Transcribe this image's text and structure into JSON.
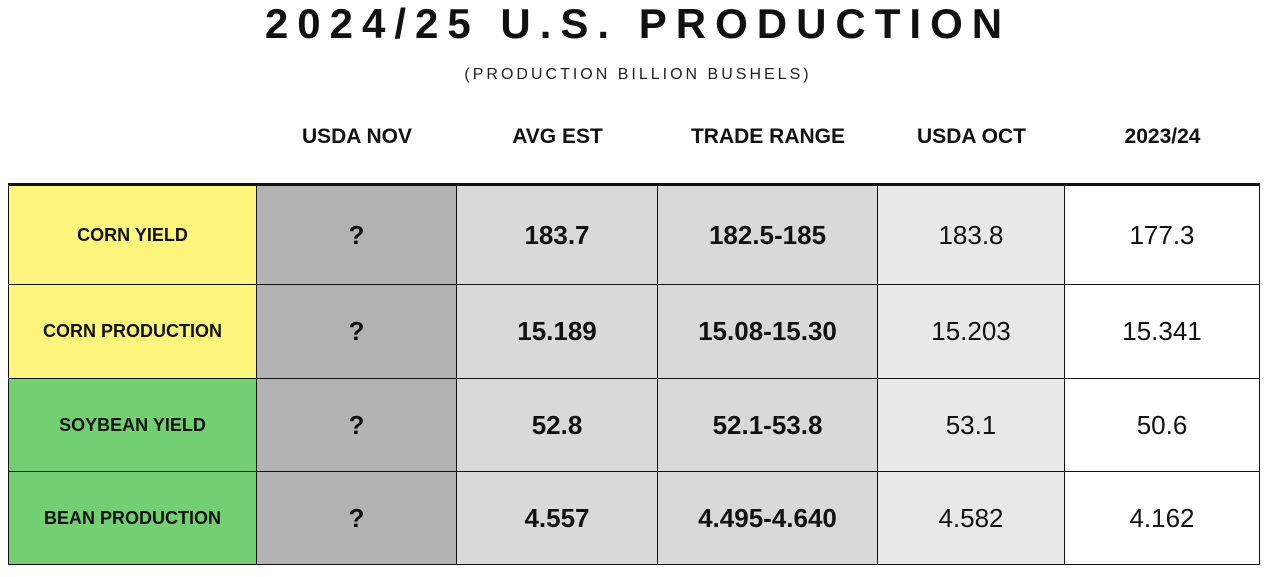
{
  "header": {
    "title": "2024/25 U.S. PRODUCTION",
    "subtitle": "(PRODUCTION BILLION BUSHELS)"
  },
  "table": {
    "columns": [
      "USDA NOV",
      "AVG EST",
      "TRADE RANGE",
      "USDA OCT",
      "2023/24"
    ],
    "rows": [
      [
        "CORN YIELD",
        "?",
        "183.7",
        "182.5-185",
        "183.8",
        "177.3"
      ],
      [
        "CORN PRODUCTION",
        "?",
        "15.189",
        "15.08-15.30",
        "15.203",
        "15.341"
      ],
      [
        "SOYBEAN YIELD",
        "?",
        "52.8",
        "52.1-53.8",
        "53.1",
        "50.6"
      ],
      [
        "BEAN PRODUCTION",
        "?",
        "4.557",
        "4.495-4.640",
        "4.582",
        "4.162"
      ]
    ]
  }
}
